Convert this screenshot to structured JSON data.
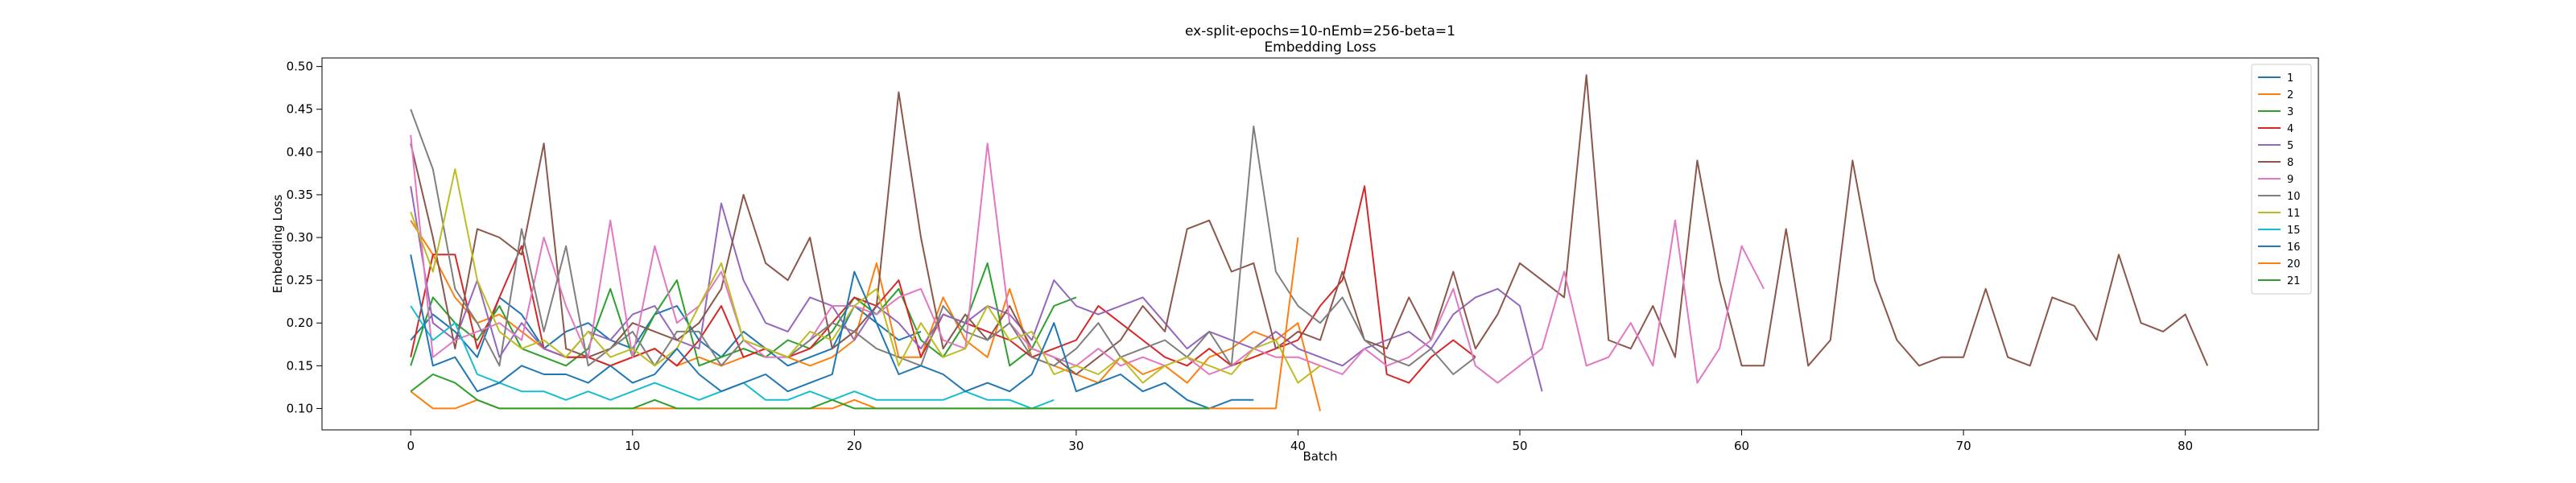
{
  "chart_data": {
    "type": "line",
    "title_lines": [
      "ex-split-epochs=10-nEmb=256-beta=1",
      "Embedding Loss"
    ],
    "xlabel": "Batch",
    "ylabel": "Embedding Loss",
    "xlim": [
      -4,
      86
    ],
    "ylim": [
      0.075,
      0.51
    ],
    "xticks": [
      0,
      10,
      20,
      30,
      40,
      50,
      60,
      70,
      80
    ],
    "yticks": [
      0.1,
      0.15,
      0.2,
      0.25,
      0.3,
      0.35,
      0.4,
      0.45,
      0.5
    ],
    "ytick_labels": [
      "0.10",
      "0.15",
      "0.20",
      "0.25",
      "0.30",
      "0.35",
      "0.40",
      "0.45",
      "0.50"
    ],
    "legend_position": "top-right",
    "series": [
      {
        "name": "1",
        "color": "#1f77b4",
        "values": [
          0.18,
          0.21,
          0.19,
          0.16,
          0.23,
          0.21,
          0.17,
          0.19,
          0.2,
          0.18,
          0.17,
          0.21,
          0.22,
          0.18,
          0.16,
          0.19,
          0.17,
          0.15,
          0.16,
          0.17,
          0.22,
          0.2,
          0.18,
          0.19
        ]
      },
      {
        "name": "2",
        "color": "#ff7f0e",
        "values": [
          0.32,
          0.28,
          0.23,
          0.2,
          0.21,
          0.19,
          0.17,
          0.16,
          0.16,
          0.15,
          0.16,
          0.17,
          0.15,
          0.16,
          0.15,
          0.16,
          0.17,
          0.16,
          0.15,
          0.16,
          0.18,
          0.27,
          0.16,
          0.16,
          0.23,
          0.18,
          0.16,
          0.24,
          0.16,
          0.15,
          0.14,
          0.13,
          0.16,
          0.14,
          0.15,
          0.13,
          0.16,
          0.17,
          0.19,
          0.18,
          0.2,
          0.097
        ]
      },
      {
        "name": "3",
        "color": "#2ca02c",
        "values": [
          0.15,
          0.23,
          0.2,
          0.18,
          0.22,
          0.17,
          0.16,
          0.15,
          0.17,
          0.24,
          0.16,
          0.21,
          0.25,
          0.15,
          0.16,
          0.17,
          0.16,
          0.18,
          0.17,
          0.19,
          0.23,
          0.21,
          0.24,
          0.18,
          0.16,
          0.2,
          0.27,
          0.15,
          0.17,
          0.22,
          0.23
        ]
      },
      {
        "name": "4",
        "color": "#d62728",
        "values": [
          0.16,
          0.28,
          0.28,
          0.17,
          0.23,
          0.29,
          0.17,
          0.16,
          0.16,
          0.15,
          0.16,
          0.17,
          0.15,
          0.18,
          0.22,
          0.16,
          0.17,
          0.16,
          0.17,
          0.2,
          0.23,
          0.22,
          0.25,
          0.16,
          0.21,
          0.2,
          0.19,
          0.18,
          0.16,
          0.17,
          0.18,
          0.22,
          0.2,
          0.18,
          0.16,
          0.15,
          0.17,
          0.15,
          0.16,
          0.17,
          0.18,
          0.22,
          0.25,
          0.36,
          0.14,
          0.13,
          0.16,
          0.18,
          0.16
        ]
      },
      {
        "name": "5",
        "color": "#9467bd",
        "values": [
          0.36,
          0.2,
          0.18,
          0.25,
          0.16,
          0.2,
          0.17,
          0.16,
          0.19,
          0.18,
          0.21,
          0.22,
          0.18,
          0.17,
          0.34,
          0.25,
          0.2,
          0.19,
          0.23,
          0.22,
          0.18,
          0.22,
          0.2,
          0.17,
          0.21,
          0.2,
          0.22,
          0.21,
          0.18,
          0.25,
          0.22,
          0.21,
          0.22,
          0.23,
          0.2,
          0.17,
          0.19,
          0.18,
          0.17,
          0.19,
          0.17,
          0.16,
          0.15,
          0.17,
          0.18,
          0.19,
          0.17,
          0.21,
          0.23,
          0.24,
          0.22,
          0.12
        ]
      },
      {
        "name": "8",
        "color": "#8c564b",
        "values": [
          0.41,
          0.3,
          0.17,
          0.31,
          0.3,
          0.28,
          0.41,
          0.17,
          0.16,
          0.17,
          0.2,
          0.19,
          0.18,
          0.2,
          0.24,
          0.35,
          0.27,
          0.25,
          0.3,
          0.17,
          0.19,
          0.22,
          0.47,
          0.3,
          0.17,
          0.21,
          0.18,
          0.22,
          0.17,
          0.16,
          0.14,
          0.16,
          0.18,
          0.22,
          0.19,
          0.31,
          0.32,
          0.26,
          0.27,
          0.17,
          0.19,
          0.18,
          0.26,
          0.18,
          0.17,
          0.23,
          0.18,
          0.26,
          0.17,
          0.21,
          0.27,
          0.25,
          0.23,
          0.49,
          0.18,
          0.17,
          0.22,
          0.16,
          0.39,
          0.25,
          0.15,
          0.15,
          0.31,
          0.15,
          0.18,
          0.39,
          0.25,
          0.18,
          0.15,
          0.16,
          0.16,
          0.24,
          0.16,
          0.15,
          0.23,
          0.22,
          0.18,
          0.28,
          0.2,
          0.19,
          0.21,
          0.15
        ]
      },
      {
        "name": "9",
        "color": "#e377c2",
        "values": [
          0.42,
          0.16,
          0.18,
          0.19,
          0.2,
          0.18,
          0.3,
          0.22,
          0.16,
          0.32,
          0.16,
          0.29,
          0.2,
          0.22,
          0.26,
          0.18,
          0.16,
          0.16,
          0.18,
          0.22,
          0.22,
          0.21,
          0.23,
          0.24,
          0.18,
          0.17,
          0.41,
          0.2,
          0.17,
          0.16,
          0.15,
          0.17,
          0.15,
          0.16,
          0.15,
          0.16,
          0.14,
          0.15,
          0.17,
          0.16,
          0.16,
          0.15,
          0.14,
          0.17,
          0.15,
          0.16,
          0.18,
          0.24,
          0.15,
          0.13,
          0.15,
          0.17,
          0.26,
          0.15,
          0.16,
          0.2,
          0.15,
          0.32,
          0.13,
          0.17,
          0.29,
          0.24
        ]
      },
      {
        "name": "10",
        "color": "#7f7f7f",
        "values": [
          0.45,
          0.38,
          0.24,
          0.2,
          0.15,
          0.31,
          0.19,
          0.29,
          0.15,
          0.17,
          0.19,
          0.15,
          0.19,
          0.19,
          0.15,
          0.18,
          0.17,
          0.16,
          0.18,
          0.2,
          0.19,
          0.17,
          0.16,
          0.15,
          0.22,
          0.19,
          0.18,
          0.2,
          0.16,
          0.15,
          0.17,
          0.2,
          0.16,
          0.17,
          0.18,
          0.16,
          0.19,
          0.15,
          0.43,
          0.26,
          0.22,
          0.2,
          0.23,
          0.18,
          0.16,
          0.15,
          0.17,
          0.14,
          0.16
        ]
      },
      {
        "name": "11",
        "color": "#bcbd22",
        "values": [
          0.33,
          0.26,
          0.38,
          0.25,
          0.19,
          0.17,
          0.18,
          0.16,
          0.19,
          0.16,
          0.17,
          0.15,
          0.17,
          0.22,
          0.27,
          0.18,
          0.17,
          0.16,
          0.19,
          0.18,
          0.22,
          0.24,
          0.15,
          0.2,
          0.16,
          0.17,
          0.22,
          0.18,
          0.19,
          0.14,
          0.15,
          0.14,
          0.16,
          0.13,
          0.15,
          0.16,
          0.15,
          0.14,
          0.17,
          0.18,
          0.13,
          0.15
        ]
      },
      {
        "name": "15",
        "color": "#17becf",
        "values": [
          0.22,
          0.18,
          0.2,
          0.14,
          0.13,
          0.12,
          0.12,
          0.11,
          0.12,
          0.11,
          0.12,
          0.13,
          0.12,
          0.11,
          0.12,
          0.13,
          0.11,
          0.11,
          0.12,
          0.11,
          0.12,
          0.11,
          0.11,
          0.11,
          0.11,
          0.12,
          0.11,
          0.11,
          0.1,
          0.11
        ]
      },
      {
        "name": "16",
        "color": "#1f77b4",
        "values": [
          0.28,
          0.15,
          0.16,
          0.12,
          0.13,
          0.15,
          0.14,
          0.14,
          0.13,
          0.15,
          0.13,
          0.14,
          0.17,
          0.14,
          0.12,
          0.13,
          0.14,
          0.12,
          0.13,
          0.14,
          0.26,
          0.2,
          0.14,
          0.15,
          0.14,
          0.12,
          0.13,
          0.12,
          0.14,
          0.2,
          0.12,
          0.13,
          0.14,
          0.12,
          0.13,
          0.11,
          0.1,
          0.11,
          0.11
        ]
      },
      {
        "name": "20",
        "color": "#ff7f0e",
        "values": [
          0.12,
          0.1,
          0.1,
          0.11,
          0.1,
          0.1,
          0.1,
          0.1,
          0.1,
          0.1,
          0.1,
          0.1,
          0.1,
          0.1,
          0.1,
          0.1,
          0.1,
          0.1,
          0.1,
          0.1,
          0.11,
          0.1,
          0.1,
          0.1,
          0.1,
          0.1,
          0.1,
          0.1,
          0.1,
          0.1,
          0.1,
          0.1,
          0.1,
          0.1,
          0.1,
          0.1,
          0.1,
          0.1,
          0.1,
          0.1,
          0.3
        ]
      },
      {
        "name": "21",
        "color": "#2ca02c",
        "values": [
          0.12,
          0.14,
          0.13,
          0.11,
          0.1,
          0.1,
          0.1,
          0.1,
          0.1,
          0.1,
          0.1,
          0.11,
          0.1,
          0.1,
          0.1,
          0.1,
          0.1,
          0.1,
          0.1,
          0.11,
          0.1,
          0.1,
          0.1,
          0.1,
          0.1,
          0.1,
          0.1,
          0.1,
          0.1,
          0.1,
          0.1,
          0.1,
          0.1,
          0.1,
          0.1,
          0.1,
          0.1
        ]
      }
    ]
  }
}
